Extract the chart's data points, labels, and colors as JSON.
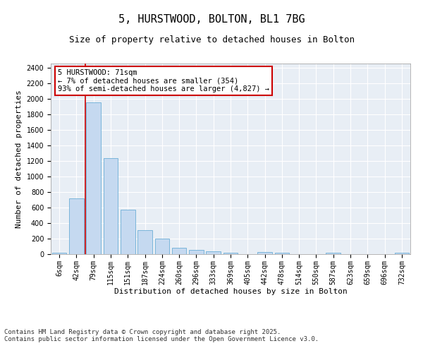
{
  "title": "5, HURSTWOOD, BOLTON, BL1 7BG",
  "subtitle": "Size of property relative to detached houses in Bolton",
  "xlabel": "Distribution of detached houses by size in Bolton",
  "ylabel": "Number of detached properties",
  "bar_labels": [
    "6sqm",
    "42sqm",
    "79sqm",
    "115sqm",
    "151sqm",
    "187sqm",
    "224sqm",
    "260sqm",
    "296sqm",
    "333sqm",
    "369sqm",
    "405sqm",
    "442sqm",
    "478sqm",
    "514sqm",
    "550sqm",
    "587sqm",
    "623sqm",
    "659sqm",
    "696sqm",
    "732sqm"
  ],
  "bar_values": [
    15,
    720,
    1950,
    1235,
    575,
    305,
    200,
    85,
    50,
    35,
    15,
    0,
    30,
    15,
    0,
    0,
    15,
    0,
    0,
    0,
    15
  ],
  "bar_color": "#c5d9f0",
  "bar_edge_color": "#6baed6",
  "annotation_text": "5 HURSTWOOD: 71sqm\n← 7% of detached houses are smaller (354)\n93% of semi-detached houses are larger (4,827) →",
  "annotation_box_color": "#ffffff",
  "annotation_box_edge_color": "#cc0000",
  "marker_line_color": "#cc0000",
  "ylim": [
    0,
    2450
  ],
  "yticks": [
    0,
    200,
    400,
    600,
    800,
    1000,
    1200,
    1400,
    1600,
    1800,
    2000,
    2200,
    2400
  ],
  "background_color": "#e8eef5",
  "footer_text": "Contains HM Land Registry data © Crown copyright and database right 2025.\nContains public sector information licensed under the Open Government Licence v3.0.",
  "title_fontsize": 11,
  "subtitle_fontsize": 9,
  "xlabel_fontsize": 8,
  "ylabel_fontsize": 8,
  "tick_fontsize": 7,
  "annotation_fontsize": 7.5,
  "footer_fontsize": 6.5
}
